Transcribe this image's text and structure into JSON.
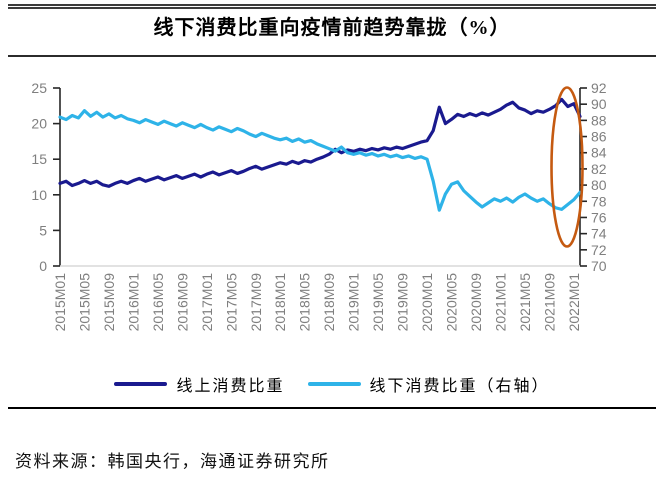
{
  "header": {
    "title": "线下消费比重向疫情前趋势靠拢（%）"
  },
  "footer": {
    "source": "资料来源：韩国央行，海通证券研究所"
  },
  "colors": {
    "online_line": "#1A1A8F",
    "offline_line": "#2EB3E8",
    "highlight_ellipse": "#C55A11",
    "axis_text": "#7F7F7F",
    "axis_line": "#262626",
    "baseline": "#D9D9D9"
  },
  "chart_data": {
    "type": "line",
    "title": "线下消费比重向疫情前趋势靠拢（%）",
    "x_start": "2015M01",
    "x_end": "2022M02",
    "x_frequency": "monthly",
    "x_tick_every": 4,
    "x_tick_labels": [
      "2015M01",
      "2015M05",
      "2015M09",
      "2016M01",
      "2016M05",
      "2016M09",
      "2017M01",
      "2017M05",
      "2017M09",
      "2018M01",
      "2018M05",
      "2018M09",
      "2019M01",
      "2019M05",
      "2019M09",
      "2020M01",
      "2020M05",
      "2020M09",
      "2021M01",
      "2021M05",
      "2021M09",
      "2022M01"
    ],
    "left_axis": {
      "min": 0,
      "max": 25,
      "step": 5,
      "ticks": [
        0,
        5,
        10,
        15,
        20,
        25
      ]
    },
    "right_axis": {
      "min": 70,
      "max": 92,
      "step": 2,
      "ticks": [
        70,
        72,
        74,
        76,
        78,
        80,
        82,
        84,
        86,
        88,
        90,
        92
      ]
    },
    "grid": false,
    "legend_position": "bottom",
    "series": [
      {
        "name": "线上消费比重",
        "axis": "left",
        "color": "#1A1A8F",
        "values": [
          11.6,
          11.9,
          11.3,
          11.6,
          12.0,
          11.6,
          11.9,
          11.4,
          11.2,
          11.6,
          11.9,
          11.6,
          12.0,
          12.3,
          11.9,
          12.2,
          12.5,
          12.1,
          12.4,
          12.7,
          12.3,
          12.6,
          12.9,
          12.5,
          12.9,
          13.2,
          12.8,
          13.1,
          13.4,
          13.0,
          13.3,
          13.7,
          14.0,
          13.6,
          13.9,
          14.2,
          14.5,
          14.3,
          14.7,
          14.4,
          14.8,
          14.6,
          15.0,
          15.3,
          15.7,
          16.4,
          15.9,
          16.3,
          16.1,
          16.4,
          16.2,
          16.5,
          16.3,
          16.6,
          16.4,
          16.7,
          16.5,
          16.8,
          17.1,
          17.4,
          17.6,
          19.0,
          22.3,
          20.0,
          20.6,
          21.3,
          21.0,
          21.4,
          21.1,
          21.5,
          21.2,
          21.6,
          22.0,
          22.6,
          23.0,
          22.2,
          21.9,
          21.4,
          21.8,
          21.6,
          22.0,
          22.5,
          23.4,
          22.4,
          22.8,
          21.0
        ]
      },
      {
        "name": "线下消费比重（右轴）",
        "axis": "right",
        "color": "#2EB3E8",
        "values": [
          88.4,
          88.1,
          88.6,
          88.3,
          89.2,
          88.5,
          89.0,
          88.4,
          88.8,
          88.3,
          88.6,
          88.2,
          88.0,
          87.7,
          88.1,
          87.8,
          87.5,
          87.9,
          87.6,
          87.3,
          87.7,
          87.4,
          87.1,
          87.5,
          87.1,
          86.8,
          87.2,
          86.9,
          86.6,
          87.0,
          86.7,
          86.3,
          86.0,
          86.4,
          86.1,
          85.8,
          85.6,
          85.8,
          85.4,
          85.7,
          85.3,
          85.5,
          85.1,
          84.8,
          84.5,
          84.2,
          84.7,
          84.0,
          83.8,
          84.0,
          83.7,
          83.9,
          83.6,
          83.8,
          83.5,
          83.7,
          83.4,
          83.6,
          83.3,
          83.5,
          83.2,
          80.5,
          76.9,
          78.9,
          80.1,
          80.4,
          79.3,
          78.6,
          77.9,
          77.3,
          77.8,
          78.3,
          78.0,
          78.4,
          77.9,
          78.5,
          78.9,
          78.4,
          78.0,
          78.3,
          77.7,
          77.2,
          77.0,
          77.6,
          78.2,
          79.1
        ]
      }
    ],
    "annotation": {
      "type": "ellipse",
      "target": "latest values of both series",
      "color": "#C55A11"
    }
  }
}
